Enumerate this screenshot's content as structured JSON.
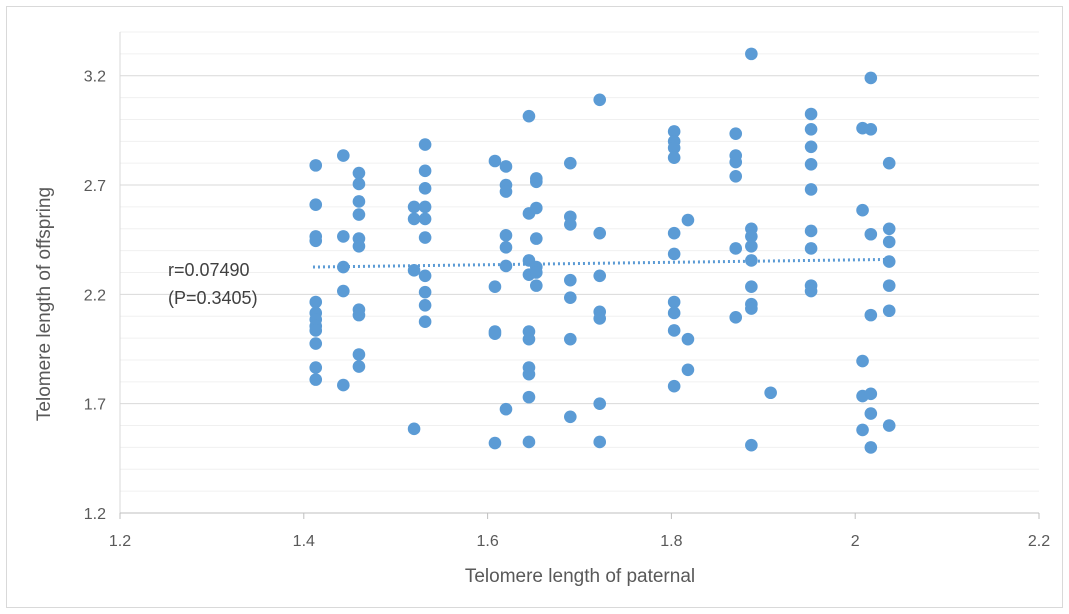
{
  "chart_data": {
    "type": "scatter",
    "title": "",
    "xlabel": "Telomere length of paternal",
    "ylabel": "Telomere length of offspring",
    "xlim": [
      1.2,
      2.2
    ],
    "ylim": [
      1.2,
      3.4
    ],
    "x_ticks": [
      "1.2",
      "1.4",
      "1.6",
      "1.8",
      "2",
      "2.2"
    ],
    "y_ticks": [
      "1.2",
      "1.7",
      "2.2",
      "2.7",
      "3.2"
    ],
    "grid": "horizontal",
    "marker_color": "#5b9bd5",
    "trendline": {
      "style": "dotted",
      "color": "#5b9bd5",
      "x_start": 1.41,
      "y_start": 2.325,
      "x_end": 2.04,
      "y_end": 2.36
    },
    "annotations": [
      "r=0.07490",
      "(P=0.3405)"
    ],
    "points": [
      [
        1.413,
        2.79
      ],
      [
        1.413,
        2.61
      ],
      [
        1.413,
        2.465
      ],
      [
        1.413,
        2.445
      ],
      [
        1.413,
        2.165
      ],
      [
        1.413,
        2.115
      ],
      [
        1.413,
        2.085
      ],
      [
        1.413,
        2.055
      ],
      [
        1.413,
        2.035
      ],
      [
        1.413,
        1.975
      ],
      [
        1.413,
        1.865
      ],
      [
        1.413,
        1.81
      ],
      [
        1.443,
        2.835
      ],
      [
        1.443,
        2.465
      ],
      [
        1.443,
        2.325
      ],
      [
        1.443,
        2.215
      ],
      [
        1.443,
        1.785
      ],
      [
        1.46,
        2.755
      ],
      [
        1.46,
        2.705
      ],
      [
        1.46,
        2.625
      ],
      [
        1.46,
        2.565
      ],
      [
        1.46,
        2.455
      ],
      [
        1.46,
        2.42
      ],
      [
        1.46,
        2.13
      ],
      [
        1.46,
        2.105
      ],
      [
        1.46,
        1.925
      ],
      [
        1.46,
        1.87
      ],
      [
        1.52,
        2.6
      ],
      [
        1.52,
        2.545
      ],
      [
        1.52,
        2.31
      ],
      [
        1.52,
        1.585
      ],
      [
        1.532,
        2.885
      ],
      [
        1.532,
        2.765
      ],
      [
        1.532,
        2.685
      ],
      [
        1.532,
        2.6
      ],
      [
        1.532,
        2.545
      ],
      [
        1.532,
        2.46
      ],
      [
        1.532,
        2.285
      ],
      [
        1.532,
        2.21
      ],
      [
        1.532,
        2.15
      ],
      [
        1.532,
        2.075
      ],
      [
        1.608,
        2.81
      ],
      [
        1.608,
        2.235
      ],
      [
        1.608,
        2.03
      ],
      [
        1.608,
        2.02
      ],
      [
        1.608,
        1.52
      ],
      [
        1.62,
        2.785
      ],
      [
        1.62,
        2.7
      ],
      [
        1.62,
        2.67
      ],
      [
        1.62,
        2.47
      ],
      [
        1.62,
        2.415
      ],
      [
        1.62,
        2.33
      ],
      [
        1.62,
        1.675
      ],
      [
        1.645,
        3.015
      ],
      [
        1.645,
        2.57
      ],
      [
        1.645,
        2.355
      ],
      [
        1.645,
        2.29
      ],
      [
        1.645,
        2.03
      ],
      [
        1.645,
        1.995
      ],
      [
        1.645,
        1.865
      ],
      [
        1.645,
        1.835
      ],
      [
        1.645,
        1.73
      ],
      [
        1.645,
        1.525
      ],
      [
        1.653,
        2.73
      ],
      [
        1.653,
        2.715
      ],
      [
        1.653,
        2.595
      ],
      [
        1.653,
        2.455
      ],
      [
        1.653,
        2.325
      ],
      [
        1.653,
        2.3
      ],
      [
        1.653,
        2.24
      ],
      [
        1.69,
        2.8
      ],
      [
        1.69,
        2.555
      ],
      [
        1.69,
        2.52
      ],
      [
        1.69,
        2.265
      ],
      [
        1.69,
        2.185
      ],
      [
        1.69,
        1.995
      ],
      [
        1.69,
        1.64
      ],
      [
        1.722,
        3.09
      ],
      [
        1.722,
        2.48
      ],
      [
        1.722,
        2.285
      ],
      [
        1.722,
        2.12
      ],
      [
        1.722,
        2.09
      ],
      [
        1.722,
        1.7
      ],
      [
        1.722,
        1.525
      ],
      [
        1.803,
        2.945
      ],
      [
        1.803,
        2.9
      ],
      [
        1.803,
        2.87
      ],
      [
        1.803,
        2.825
      ],
      [
        1.803,
        2.48
      ],
      [
        1.803,
        2.385
      ],
      [
        1.803,
        2.165
      ],
      [
        1.803,
        2.115
      ],
      [
        1.803,
        2.035
      ],
      [
        1.803,
        1.78
      ],
      [
        1.818,
        2.54
      ],
      [
        1.818,
        1.995
      ],
      [
        1.818,
        1.855
      ],
      [
        1.87,
        2.935
      ],
      [
        1.87,
        2.835
      ],
      [
        1.87,
        2.805
      ],
      [
        1.87,
        2.74
      ],
      [
        1.87,
        2.41
      ],
      [
        1.87,
        2.095
      ],
      [
        1.887,
        3.3
      ],
      [
        1.887,
        2.5
      ],
      [
        1.887,
        2.465
      ],
      [
        1.887,
        2.42
      ],
      [
        1.887,
        2.355
      ],
      [
        1.887,
        2.235
      ],
      [
        1.887,
        2.155
      ],
      [
        1.887,
        2.135
      ],
      [
        1.887,
        1.51
      ],
      [
        1.908,
        1.75
      ],
      [
        1.952,
        3.025
      ],
      [
        1.952,
        2.955
      ],
      [
        1.952,
        2.875
      ],
      [
        1.952,
        2.795
      ],
      [
        1.952,
        2.68
      ],
      [
        1.952,
        2.49
      ],
      [
        1.952,
        2.41
      ],
      [
        1.952,
        2.24
      ],
      [
        1.952,
        2.215
      ],
      [
        2.008,
        2.96
      ],
      [
        2.008,
        2.585
      ],
      [
        2.008,
        1.895
      ],
      [
        2.008,
        1.735
      ],
      [
        2.008,
        1.58
      ],
      [
        2.017,
        3.19
      ],
      [
        2.017,
        2.955
      ],
      [
        2.017,
        2.475
      ],
      [
        2.017,
        2.105
      ],
      [
        2.017,
        1.745
      ],
      [
        2.017,
        1.655
      ],
      [
        2.017,
        1.5
      ],
      [
        2.037,
        2.8
      ],
      [
        2.037,
        2.5
      ],
      [
        2.037,
        2.44
      ],
      [
        2.037,
        2.35
      ],
      [
        2.037,
        2.24
      ],
      [
        2.037,
        2.125
      ],
      [
        2.037,
        1.6
      ]
    ]
  }
}
